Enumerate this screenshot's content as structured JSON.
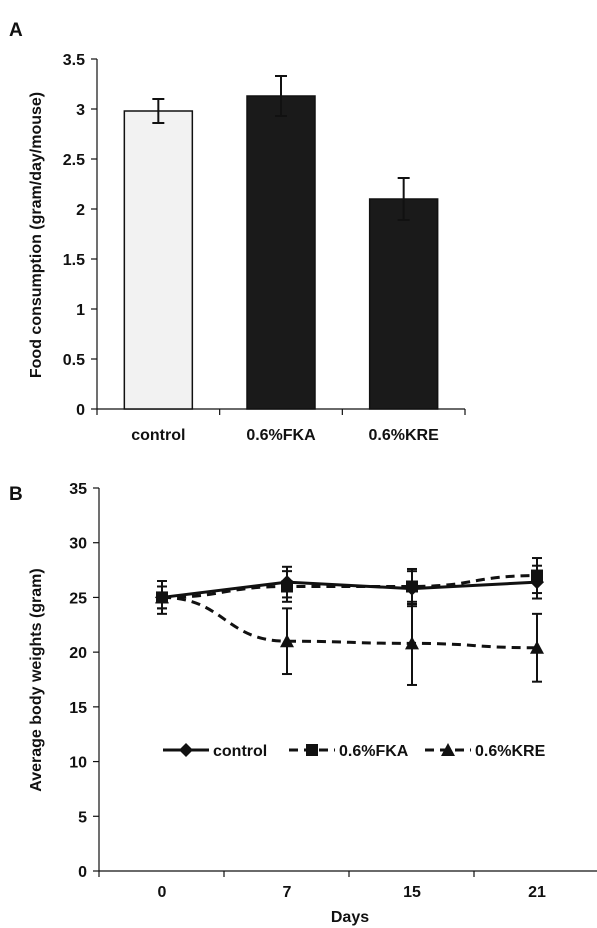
{
  "chart_data": [
    {
      "panel": "A",
      "type": "bar",
      "categories": [
        "control",
        "0.6%FKA",
        "0.6%KRE"
      ],
      "values": [
        2.98,
        3.13,
        2.1
      ],
      "errors": [
        0.12,
        0.2,
        0.21
      ],
      "colors": [
        "#f2f2f2",
        "#1a1a1a",
        "#1a1a1a"
      ],
      "ylabel": "Food consumption (gram/day/mouse)",
      "xlabel": "",
      "ylim": [
        0,
        3.5
      ],
      "yticks": [
        "0",
        "0.5",
        "1",
        "1.5",
        "2",
        "2.5",
        "3",
        "3.5"
      ],
      "grid": false
    },
    {
      "panel": "B",
      "type": "line",
      "x": [
        "0",
        "7",
        "15",
        "21"
      ],
      "series": [
        {
          "name": "control",
          "values": [
            25.0,
            26.4,
            25.8,
            26.4
          ],
          "errors": [
            1.0,
            1.4,
            1.6,
            1.5
          ],
          "marker": "diamond",
          "dash": "solid"
        },
        {
          "name": "0.6%FKA",
          "values": [
            25.0,
            26.0,
            26.0,
            27.0
          ],
          "errors": [
            1.0,
            1.4,
            1.6,
            1.6
          ],
          "marker": "square",
          "dash": "dashed"
        },
        {
          "name": "0.6%KRE",
          "values": [
            25.0,
            21.0,
            20.8,
            20.4
          ],
          "errors": [
            1.5,
            3.0,
            3.8,
            3.1
          ],
          "marker": "triangle",
          "dash": "dashed"
        }
      ],
      "xlabel": "Days",
      "ylabel": "Average body weights (gram)",
      "ylim": [
        0,
        35
      ],
      "yticks": [
        "0",
        "5",
        "10",
        "15",
        "20",
        "25",
        "30",
        "35"
      ],
      "legend": "inside-middle",
      "grid": false
    }
  ],
  "labels": {
    "panel_a": "A",
    "panel_b": "B"
  }
}
